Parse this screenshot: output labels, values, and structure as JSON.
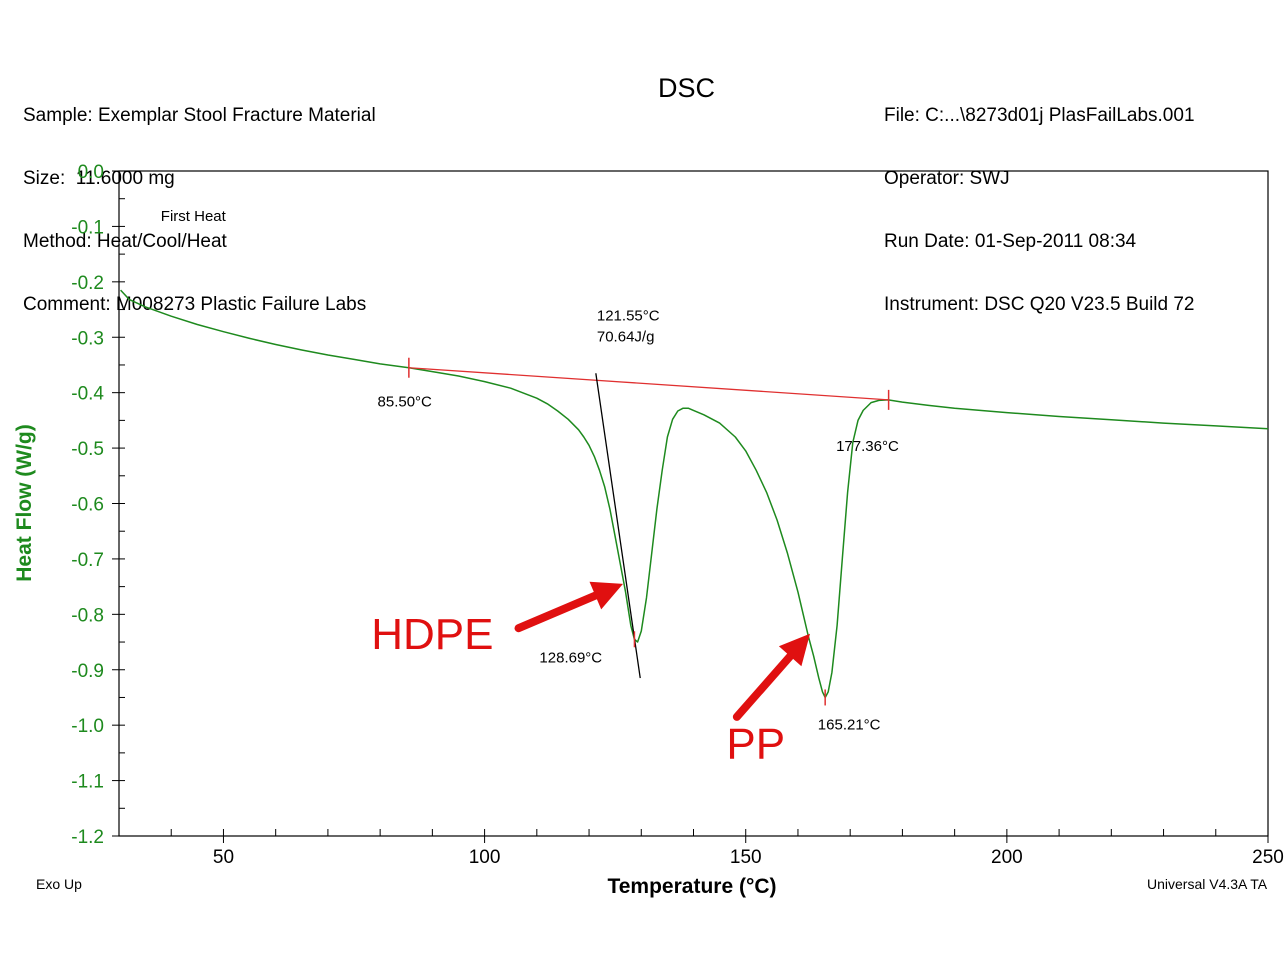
{
  "header": {
    "title": "DSC",
    "left_lines": [
      "Sample: Exemplar Stool Fracture Material",
      "Size:  11.6000 mg",
      "Method: Heat/Cool/Heat",
      "Comment: M008273 Plastic Failure Labs"
    ],
    "right_lines": [
      "File: C:...\\8273d01j PlasFailLabs.001",
      "Operator: SWJ",
      "Run Date: 01-Sep-2011 08:34",
      "Instrument: DSC Q20 V23.5 Build 72"
    ]
  },
  "footer": {
    "exo": "Exo Up",
    "software": "Universal V4.3A TA"
  },
  "colors": {
    "curve": "#1e8a1e",
    "axis_label": "#1e8a1e",
    "baseline": "#e03030",
    "tangent": "#000000",
    "annotation": "#e01010"
  },
  "chart_data": {
    "type": "line",
    "title": "DSC",
    "xlabel": "Temperature (°C)",
    "ylabel": "Heat Flow (W/g)",
    "xlim": [
      30,
      250
    ],
    "ylim": [
      -1.2,
      0.0
    ],
    "x_ticks": [
      50,
      100,
      150,
      200,
      250
    ],
    "y_ticks": [
      "0.0",
      "-0.1",
      "-0.2",
      "-0.3",
      "-0.4",
      "-0.5",
      "-0.6",
      "-0.7",
      "-0.8",
      "-0.9",
      "-1.0",
      "-1.1",
      "-1.2"
    ],
    "series": [
      {
        "x": [
          30.3,
          32,
          35,
          40,
          45,
          50,
          55,
          60,
          65,
          70,
          75,
          80,
          85.5,
          90,
          95,
          100,
          105,
          110,
          112,
          114,
          116,
          118,
          119,
          120,
          121,
          122,
          123,
          124,
          125,
          126,
          127,
          128,
          128.69,
          129.3,
          130,
          131,
          132,
          133,
          134,
          135,
          136,
          137,
          138,
          139,
          140,
          142,
          145,
          148,
          150,
          152,
          154,
          156,
          158,
          160,
          161,
          162,
          163,
          164,
          164.7,
          165.21,
          165.8,
          166.5,
          167.5,
          168.5,
          169.5,
          170.5,
          171.5,
          172.5,
          174,
          175.5,
          177.36,
          180,
          185,
          190,
          200,
          210,
          220,
          230,
          240,
          250
        ],
        "y": [
          -0.215,
          -0.232,
          -0.245,
          -0.262,
          -0.277,
          -0.29,
          -0.302,
          -0.313,
          -0.323,
          -0.332,
          -0.34,
          -0.348,
          -0.355,
          -0.362,
          -0.37,
          -0.38,
          -0.392,
          -0.41,
          -0.42,
          -0.433,
          -0.448,
          -0.467,
          -0.48,
          -0.495,
          -0.515,
          -0.54,
          -0.57,
          -0.61,
          -0.66,
          -0.71,
          -0.76,
          -0.82,
          -0.845,
          -0.85,
          -0.83,
          -0.77,
          -0.69,
          -0.61,
          -0.54,
          -0.48,
          -0.448,
          -0.433,
          -0.428,
          -0.428,
          -0.432,
          -0.44,
          -0.455,
          -0.48,
          -0.505,
          -0.54,
          -0.58,
          -0.63,
          -0.69,
          -0.76,
          -0.8,
          -0.84,
          -0.875,
          -0.915,
          -0.94,
          -0.95,
          -0.94,
          -0.905,
          -0.82,
          -0.7,
          -0.58,
          -0.49,
          -0.45,
          -0.432,
          -0.418,
          -0.414,
          -0.413,
          -0.417,
          -0.423,
          -0.428,
          -0.436,
          -0.443,
          -0.449,
          -0.455,
          -0.46,
          -0.465
        ]
      }
    ],
    "baseline": {
      "x": [
        85.5,
        177.36
      ],
      "y": [
        -0.355,
        -0.413
      ]
    },
    "tangent": {
      "x": [
        121.3,
        129.8
      ],
      "y": [
        -0.365,
        -0.915
      ]
    },
    "limit_markers": [
      {
        "x": 85.5,
        "y": -0.355
      },
      {
        "x": 177.36,
        "y": -0.413
      }
    ],
    "peak_markers": [
      {
        "x": 128.69,
        "y": -0.845
      },
      {
        "x": 165.21,
        "y": -0.95
      }
    ],
    "annotations": [
      {
        "text": "First Heat",
        "x": 38,
        "y": -0.09,
        "size": 15,
        "color": "#000000"
      },
      {
        "text": "121.55°C",
        "x": 121.5,
        "y": -0.27,
        "size": 15,
        "color": "#000000"
      },
      {
        "text": "70.64J/g",
        "x": 121.5,
        "y": -0.308,
        "size": 15,
        "color": "#000000"
      },
      {
        "text": "85.50°C",
        "x": 79.5,
        "y": -0.425,
        "size": 15,
        "color": "#000000"
      },
      {
        "text": "177.36°C",
        "x": 167.3,
        "y": -0.505,
        "size": 15,
        "color": "#000000"
      },
      {
        "text": "128.69°C",
        "x": 110.5,
        "y": -0.887,
        "size": 15,
        "color": "#000000"
      },
      {
        "text": "165.21°C",
        "x": 163.8,
        "y": -1.008,
        "size": 15,
        "color": "#000000"
      },
      {
        "text": "HDPE",
        "x": 78.3,
        "y": -0.863,
        "size": 44,
        "color": "#e01010"
      },
      {
        "text": "PP",
        "x": 146.3,
        "y": -1.06,
        "size": 44,
        "color": "#e01010"
      }
    ],
    "arrows": [
      {
        "x1": 106.5,
        "y1": -0.825,
        "x2": 126.5,
        "y2": -0.745
      },
      {
        "x1": 148.3,
        "y1": -0.985,
        "x2": 162.3,
        "y2": -0.835
      }
    ],
    "grid": false
  }
}
